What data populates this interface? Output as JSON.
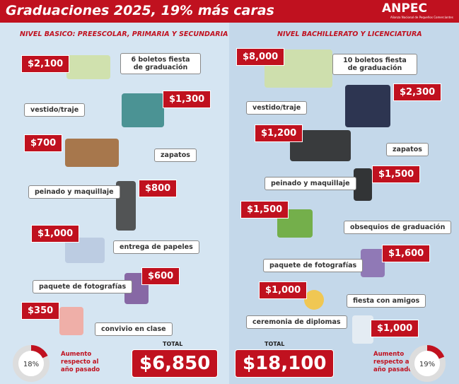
{
  "header": {
    "title": "Graduaciones 2025, 19% más caras",
    "logo": "ANPEC",
    "logo_subtitle": "Alianza Nacional de Pequeños Comerciantes"
  },
  "left": {
    "heading": "NIVEL BASICO: PREESCOLAR, PRIMARIA Y SECUNDARIA",
    "items": [
      {
        "price": "$2,100",
        "label": "6 boletos fiesta de graduación"
      },
      {
        "price": "$1,300",
        "label": "vestido/traje"
      },
      {
        "price": "$700",
        "label": "zapatos"
      },
      {
        "price": "$800",
        "label": "peinado y maquillaje"
      },
      {
        "price": "$1,000",
        "label": "entrega de papeles"
      },
      {
        "price": "$600",
        "label": "paquete de fotografías"
      },
      {
        "price": "$350",
        "label": "convivio en clase"
      }
    ],
    "total_label": "TOTAL",
    "total": "$6,850",
    "increase": {
      "value": 18,
      "label": "18%"
    },
    "increase_text": "Aumento respecto al año pasado"
  },
  "right": {
    "heading": "NIVEL BACHILLERATO Y LICENCIATURA",
    "items": [
      {
        "price": "$8,000",
        "label": "10 boletos fiesta de graduación"
      },
      {
        "price": "$2,300",
        "label": "vestido/traje"
      },
      {
        "price": "$1,200",
        "label": "zapatos"
      },
      {
        "price": "$1,500",
        "label": "peinado y maquillaje"
      },
      {
        "price": "$1,500",
        "label": "obsequios de graduación"
      },
      {
        "price": "$1,600",
        "label": "paquete de fotografías"
      },
      {
        "price": "$1,000",
        "label": "fiesta con amigos"
      },
      {
        "price": "$1,000",
        "label": "ceremonia de diplomas"
      }
    ],
    "total_label": "TOTAL",
    "total": "$18,100",
    "increase": {
      "value": 19,
      "label": "19%"
    },
    "increase_text": "Aumento respecto al año pasado"
  }
}
